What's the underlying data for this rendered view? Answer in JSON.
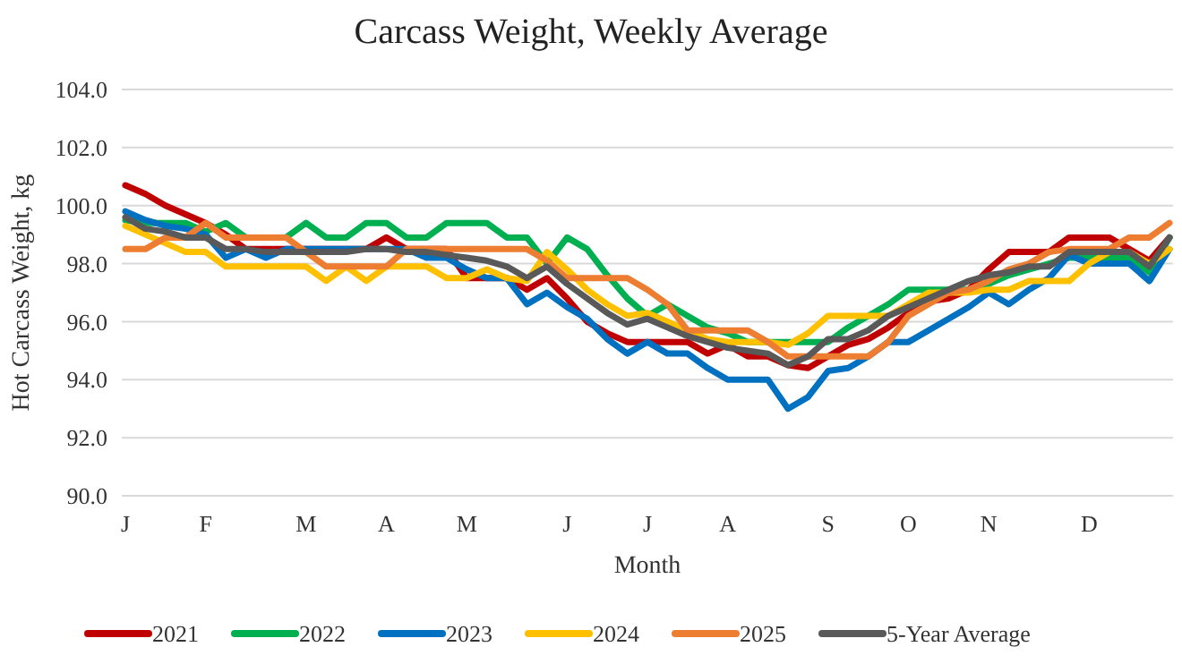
{
  "chart_data": {
    "type": "line",
    "title": "Carcass Weight, Weekly Average",
    "xlabel": "Month",
    "ylabel": "Hot Carcass Weight, kg",
    "categories": [
      "J",
      null,
      null,
      null,
      "F",
      null,
      null,
      null,
      null,
      "M",
      null,
      null,
      null,
      "A",
      null,
      null,
      null,
      "M",
      null,
      null,
      null,
      null,
      "J",
      null,
      null,
      null,
      "J",
      null,
      null,
      null,
      "A",
      null,
      null,
      null,
      null,
      "S",
      null,
      null,
      null,
      "O",
      null,
      null,
      null,
      "N",
      null,
      null,
      null,
      null,
      "D",
      null,
      null,
      null,
      null
    ],
    "ylim": [
      90,
      104
    ],
    "yticks": [
      {
        "value": 90,
        "label": "90.0"
      },
      {
        "value": 92,
        "label": "92.0"
      },
      {
        "value": 94,
        "label": "94.0"
      },
      {
        "value": 96,
        "label": "96.0"
      },
      {
        "value": 98,
        "label": "98.0"
      },
      {
        "value": 100,
        "label": "100.0"
      },
      {
        "value": 102,
        "label": "102.0"
      },
      {
        "value": 104,
        "label": "104.0"
      }
    ],
    "grid": "y",
    "legend": "bottom",
    "marker": "none",
    "line_style": "solid",
    "series": [
      {
        "name": "2021",
        "color": "#c00000",
        "values": [
          100.7,
          100.4,
          100.0,
          99.7,
          99.4,
          99.0,
          98.5,
          98.5,
          98.5,
          98.5,
          98.5,
          98.5,
          98.5,
          98.9,
          98.5,
          98.5,
          98.5,
          97.5,
          97.5,
          97.5,
          97.1,
          97.5,
          96.8,
          96.0,
          95.6,
          95.3,
          95.3,
          95.3,
          95.3,
          94.9,
          95.2,
          94.8,
          94.8,
          94.5,
          94.4,
          94.8,
          95.2,
          95.4,
          95.8,
          96.3,
          96.7,
          96.8,
          97.1,
          97.8,
          98.4,
          98.4,
          98.4,
          98.9,
          98.9,
          98.9,
          98.5,
          98.1,
          98.9
        ]
      },
      {
        "name": "2022",
        "color": "#00b050",
        "values": [
          99.5,
          99.4,
          99.4,
          99.4,
          99.1,
          99.4,
          98.9,
          98.9,
          98.9,
          99.4,
          98.9,
          98.9,
          99.4,
          99.4,
          98.9,
          98.9,
          99.4,
          99.4,
          99.4,
          98.9,
          98.9,
          98.0,
          98.9,
          98.5,
          97.6,
          96.8,
          96.2,
          96.6,
          96.2,
          95.8,
          95.6,
          95.3,
          95.3,
          95.3,
          95.3,
          95.3,
          95.8,
          96.2,
          96.6,
          97.1,
          97.1,
          97.1,
          97.1,
          97.3,
          97.6,
          97.8,
          98.0,
          98.2,
          98.2,
          98.2,
          98.2,
          97.7,
          98.9
        ]
      },
      {
        "name": "2023",
        "color": "#0070c0",
        "values": [
          99.8,
          99.5,
          99.3,
          99.2,
          99.0,
          98.2,
          98.5,
          98.2,
          98.5,
          98.5,
          98.5,
          98.5,
          98.5,
          98.5,
          98.5,
          98.2,
          98.2,
          97.8,
          97.5,
          97.5,
          96.6,
          97.0,
          96.5,
          96.1,
          95.4,
          94.9,
          95.3,
          94.9,
          94.9,
          94.4,
          94.0,
          94.0,
          94.0,
          93.0,
          93.4,
          94.3,
          94.4,
          94.8,
          95.3,
          95.3,
          95.7,
          96.1,
          96.5,
          97.0,
          96.6,
          97.1,
          97.5,
          98.3,
          98.0,
          98.0,
          98.0,
          97.4,
          98.5
        ]
      },
      {
        "name": "2024",
        "color": "#ffc000",
        "values": [
          99.3,
          99.0,
          98.7,
          98.4,
          98.4,
          97.9,
          97.9,
          97.9,
          97.9,
          97.9,
          97.4,
          97.9,
          97.4,
          97.9,
          97.9,
          97.9,
          97.5,
          97.5,
          97.8,
          97.5,
          97.4,
          98.4,
          97.8,
          97.1,
          96.6,
          96.2,
          96.3,
          96.0,
          95.7,
          95.4,
          95.3,
          95.3,
          95.3,
          95.2,
          95.6,
          96.2,
          96.2,
          96.2,
          96.2,
          96.6,
          97.0,
          97.0,
          97.0,
          97.1,
          97.1,
          97.4,
          97.4,
          97.4,
          98.0,
          98.4,
          98.4,
          98.0,
          98.5
        ]
      },
      {
        "name": "2025",
        "color": "#ed7d31",
        "values": [
          98.5,
          98.5,
          98.9,
          98.9,
          99.4,
          98.9,
          98.9,
          98.9,
          98.9,
          98.4,
          97.9,
          97.9,
          97.9,
          97.9,
          98.5,
          98.5,
          98.5,
          98.5,
          98.5,
          98.5,
          98.5,
          98.1,
          97.5,
          97.5,
          97.5,
          97.5,
          97.1,
          96.6,
          95.7,
          95.7,
          95.7,
          95.7,
          95.3,
          94.8,
          94.8,
          94.8,
          94.8,
          94.8,
          95.3,
          96.2,
          96.6,
          97.0,
          97.1,
          97.4,
          97.8,
          98.0,
          98.4,
          98.5,
          98.5,
          98.5,
          98.9,
          98.9,
          99.4
        ]
      },
      {
        "name": "5-Year Average",
        "color": "#595959",
        "values": [
          99.6,
          99.2,
          99.1,
          98.9,
          98.9,
          98.5,
          98.5,
          98.4,
          98.4,
          98.4,
          98.4,
          98.4,
          98.5,
          98.5,
          98.4,
          98.4,
          98.3,
          98.2,
          98.1,
          97.9,
          97.5,
          97.9,
          97.3,
          96.8,
          96.3,
          95.9,
          96.1,
          95.8,
          95.5,
          95.3,
          95.1,
          95.0,
          94.9,
          94.5,
          94.8,
          95.4,
          95.4,
          95.7,
          96.2,
          96.5,
          96.8,
          97.1,
          97.4,
          97.6,
          97.7,
          97.9,
          97.9,
          98.4,
          98.4,
          98.4,
          98.4,
          97.9,
          98.9
        ]
      }
    ]
  }
}
